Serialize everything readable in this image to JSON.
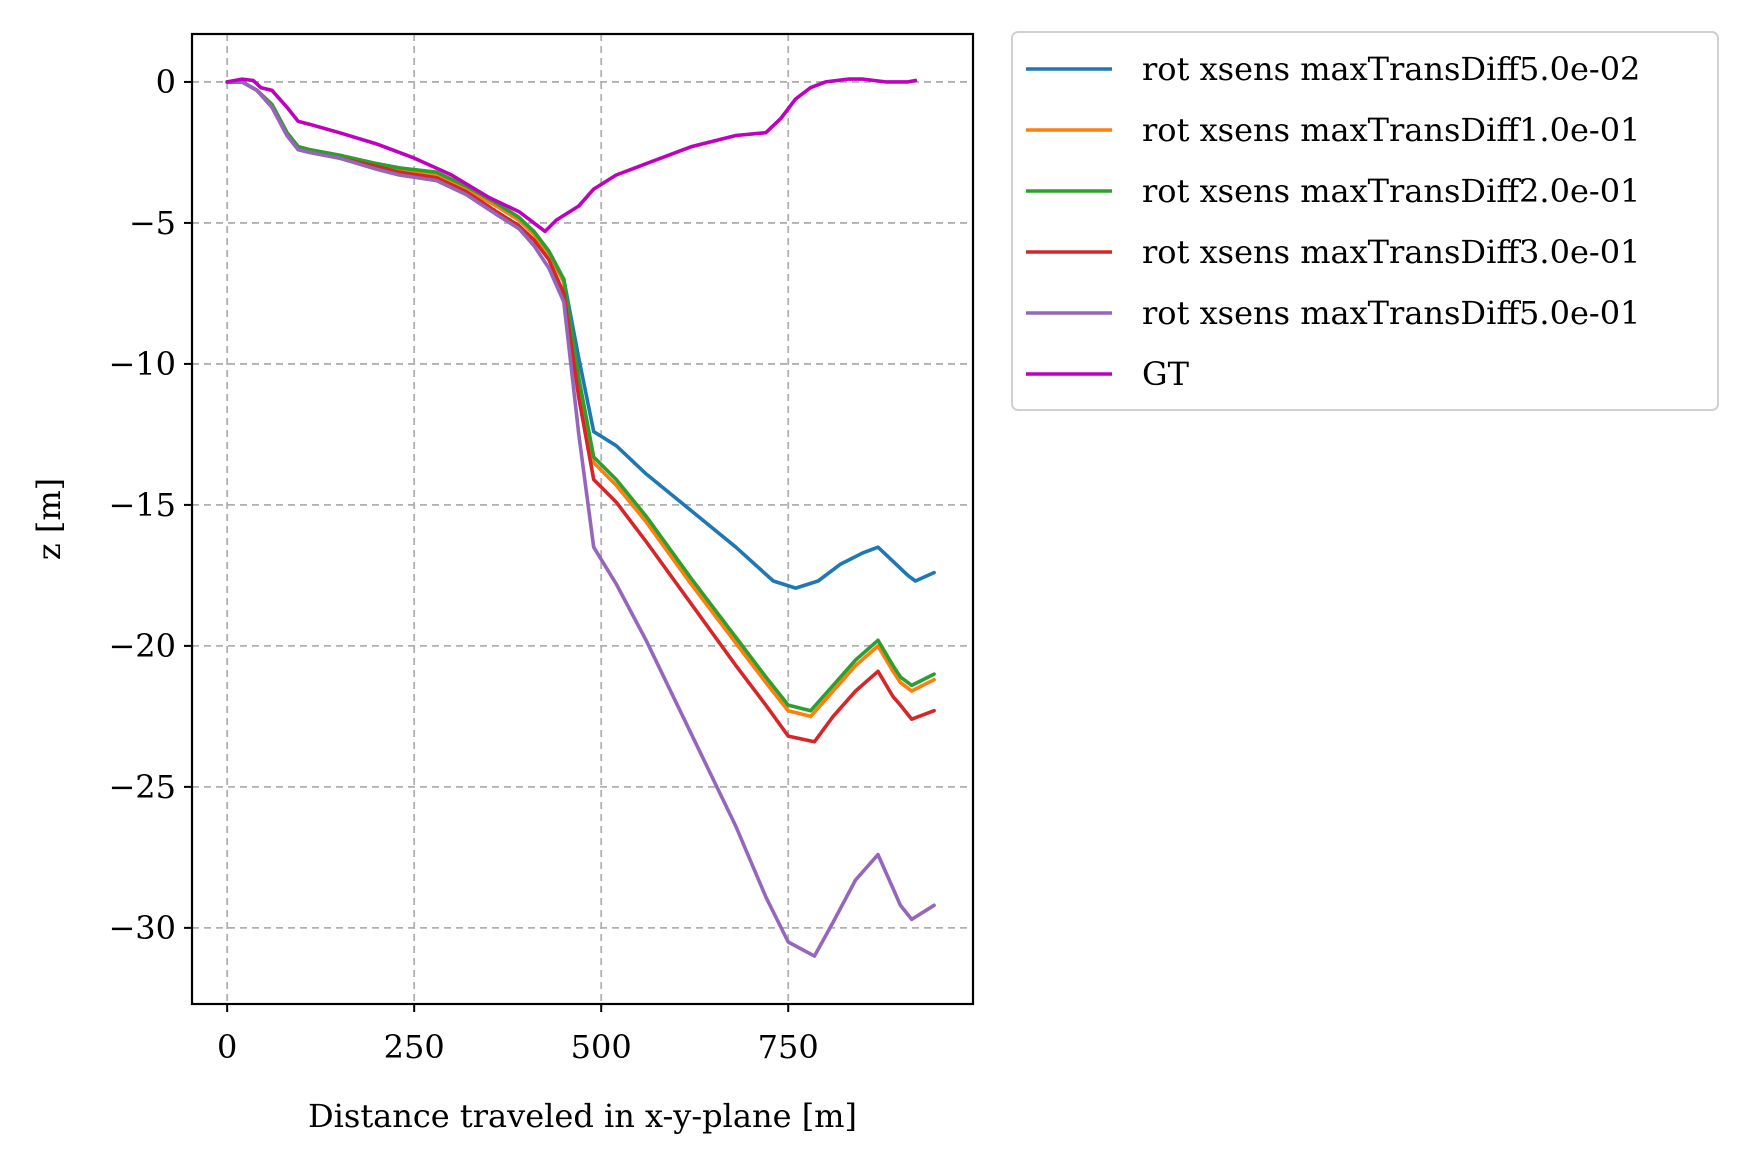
{
  "chart_data": {
    "type": "line",
    "title": "",
    "xlabel": "Distance traveled in x-y-plane [m]",
    "ylabel": "z [m]",
    "xlim": [
      -47,
      997
    ],
    "ylim": [
      -32.7,
      1.7
    ],
    "xticks": [
      0,
      250,
      500,
      750
    ],
    "xtick_labels": [
      "0",
      "250",
      "500",
      "750"
    ],
    "yticks": [
      0,
      -5,
      -10,
      -15,
      -20,
      -25,
      -30
    ],
    "ytick_labels": [
      "0",
      "−5",
      "−10",
      "−15",
      "−20",
      "−25",
      "−30"
    ],
    "grid": true,
    "legend_position": "outside-top-right",
    "series": [
      {
        "name": "rot xsens maxTransDiff5.0e-02",
        "color": "#1f77b4",
        "x": [
          0,
          20,
          40,
          60,
          80,
          95,
          110,
          150,
          200,
          230,
          280,
          320,
          360,
          390,
          410,
          430,
          450,
          470,
          490,
          520,
          560,
          620,
          680,
          730,
          760,
          790,
          820,
          850,
          870,
          890,
          910,
          920,
          945
        ],
        "y": [
          0,
          0,
          -0.3,
          -0.8,
          -1.8,
          -2.3,
          -2.4,
          -2.6,
          -2.9,
          -3.05,
          -3.3,
          -3.8,
          -4.4,
          -4.9,
          -5.3,
          -6.0,
          -7.0,
          -9.8,
          -12.4,
          -12.9,
          -13.9,
          -15.2,
          -16.5,
          -17.7,
          -17.95,
          -17.7,
          -17.1,
          -16.7,
          -16.5,
          -17.0,
          -17.5,
          -17.7,
          -17.4
        ]
      },
      {
        "name": "rot xsens maxTransDiff1.0e-01",
        "color": "#ff7f0e",
        "x": [
          0,
          20,
          40,
          60,
          80,
          95,
          110,
          150,
          200,
          230,
          280,
          320,
          360,
          390,
          410,
          430,
          450,
          470,
          490,
          520,
          560,
          620,
          680,
          720,
          750,
          780,
          810,
          840,
          870,
          890,
          900,
          915,
          945
        ],
        "y": [
          0,
          0,
          -0.3,
          -0.8,
          -1.8,
          -2.3,
          -2.4,
          -2.6,
          -2.9,
          -3.1,
          -3.3,
          -3.8,
          -4.4,
          -4.9,
          -5.4,
          -6.1,
          -7.1,
          -10.6,
          -13.5,
          -14.3,
          -15.6,
          -17.8,
          -19.9,
          -21.3,
          -22.3,
          -22.5,
          -21.6,
          -20.7,
          -20.0,
          -20.9,
          -21.3,
          -21.6,
          -21.2
        ]
      },
      {
        "name": "rot xsens maxTransDiff2.0e-01",
        "color": "#2ca02c",
        "x": [
          0,
          20,
          40,
          60,
          80,
          95,
          110,
          150,
          200,
          230,
          280,
          320,
          360,
          390,
          410,
          430,
          450,
          470,
          490,
          520,
          560,
          620,
          680,
          720,
          750,
          780,
          810,
          840,
          870,
          890,
          900,
          915,
          945
        ],
        "y": [
          0,
          0,
          -0.3,
          -0.8,
          -1.8,
          -2.3,
          -2.4,
          -2.6,
          -2.9,
          -3.05,
          -3.2,
          -3.7,
          -4.3,
          -4.8,
          -5.3,
          -6.0,
          -7.0,
          -10.5,
          -13.3,
          -14.1,
          -15.4,
          -17.6,
          -19.7,
          -21.1,
          -22.1,
          -22.3,
          -21.4,
          -20.5,
          -19.8,
          -20.7,
          -21.1,
          -21.4,
          -21.0
        ]
      },
      {
        "name": "rot xsens maxTransDiff3.0e-01",
        "color": "#d62728",
        "x": [
          0,
          20,
          40,
          60,
          80,
          95,
          110,
          150,
          200,
          230,
          280,
          320,
          360,
          390,
          410,
          430,
          450,
          470,
          490,
          520,
          560,
          620,
          680,
          720,
          750,
          785,
          810,
          840,
          870,
          890,
          900,
          915,
          945
        ],
        "y": [
          0,
          0,
          -0.3,
          -0.9,
          -1.9,
          -2.4,
          -2.5,
          -2.7,
          -3.0,
          -3.2,
          -3.4,
          -3.9,
          -4.6,
          -5.1,
          -5.6,
          -6.3,
          -7.5,
          -11.2,
          -14.1,
          -14.9,
          -16.3,
          -18.5,
          -20.7,
          -22.1,
          -23.2,
          -23.4,
          -22.5,
          -21.6,
          -20.9,
          -21.8,
          -22.1,
          -22.6,
          -22.3
        ]
      },
      {
        "name": "rot xsens maxTransDiff5.0e-01",
        "color": "#9467bd",
        "x": [
          0,
          20,
          40,
          60,
          80,
          95,
          110,
          150,
          200,
          230,
          280,
          320,
          360,
          390,
          410,
          430,
          450,
          470,
          490,
          520,
          560,
          620,
          680,
          720,
          750,
          785,
          810,
          840,
          870,
          890,
          900,
          915,
          945
        ],
        "y": [
          0,
          0,
          -0.3,
          -0.9,
          -1.9,
          -2.4,
          -2.5,
          -2.7,
          -3.1,
          -3.3,
          -3.5,
          -4.0,
          -4.7,
          -5.2,
          -5.8,
          -6.6,
          -7.8,
          -12.5,
          -16.5,
          -17.8,
          -19.8,
          -23.1,
          -26.4,
          -28.9,
          -30.5,
          -31.0,
          -29.8,
          -28.3,
          -27.4,
          -28.6,
          -29.2,
          -29.7,
          -29.2
        ]
      },
      {
        "name": "GT",
        "color": "#bf00bf",
        "x": [
          0,
          20,
          35,
          45,
          60,
          80,
          95,
          110,
          150,
          200,
          250,
          300,
          350,
          390,
          410,
          425,
          440,
          470,
          490,
          520,
          560,
          620,
          680,
          720,
          740,
          760,
          780,
          800,
          830,
          850,
          880,
          910,
          920
        ],
        "y": [
          0,
          0.1,
          0.05,
          -0.2,
          -0.3,
          -0.9,
          -1.4,
          -1.5,
          -1.8,
          -2.2,
          -2.7,
          -3.3,
          -4.1,
          -4.6,
          -5.0,
          -5.3,
          -4.9,
          -4.4,
          -3.8,
          -3.3,
          -2.9,
          -2.3,
          -1.9,
          -1.8,
          -1.3,
          -0.6,
          -0.2,
          0.0,
          0.1,
          0.1,
          0.0,
          0.0,
          0.05
        ]
      }
    ]
  }
}
